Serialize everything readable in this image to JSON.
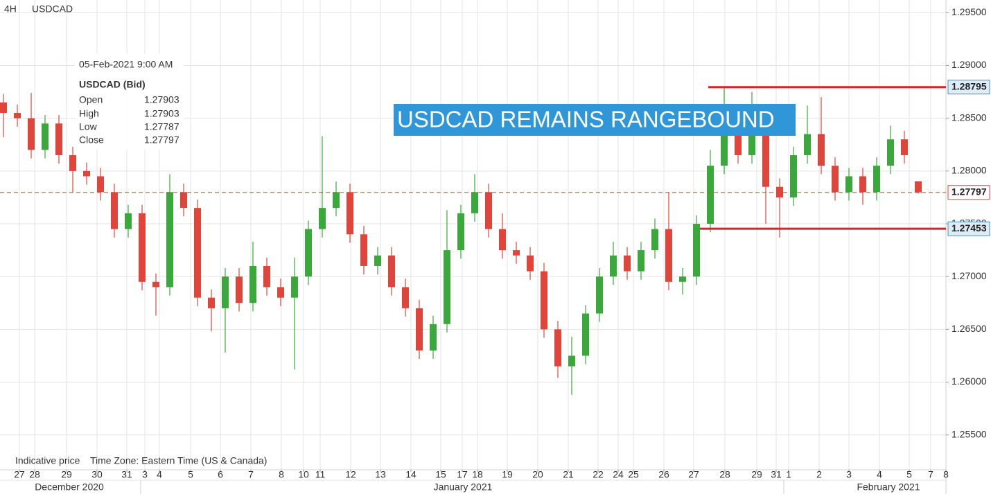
{
  "header": {
    "timeframe": "4H",
    "symbol": "USDCAD"
  },
  "tooltip": {
    "date": "05-Feb-2021 9:00 AM",
    "title": "USDCAD (Bid)",
    "labels": [
      "Open",
      "High",
      "Low",
      "Close"
    ]
  },
  "footer": {
    "note": "Indicative price",
    "timezone": "Time Zone: Eastern Time (US & Canada)"
  },
  "chart_data": {
    "type": "candlestick",
    "annotation": "USDCAD REMAINS RANGEBOUND",
    "up_color": "#3aa83a",
    "down_color": "#e0453c",
    "grid": true,
    "x": [
      0,
      1,
      2,
      3,
      4,
      5,
      6,
      7,
      8,
      9,
      10,
      11,
      12,
      13,
      14,
      15,
      16,
      17,
      18,
      19,
      20,
      21,
      22,
      23,
      24,
      25,
      26,
      27,
      28,
      29,
      30,
      31,
      32,
      33,
      34,
      35,
      36,
      37,
      38,
      39,
      40,
      41,
      42,
      43,
      44,
      45,
      46,
      47,
      48,
      49,
      50,
      51,
      52,
      53,
      54,
      55,
      56,
      57,
      58,
      59,
      60,
      61,
      62,
      63,
      64,
      65,
      66
    ],
    "open": [
      1.2865,
      1.2855,
      1.285,
      1.282,
      1.2845,
      1.2815,
      1.28,
      1.2795,
      1.278,
      1.2745,
      1.276,
      1.2695,
      1.269,
      1.278,
      1.2765,
      1.268,
      1.267,
      1.27,
      1.2675,
      1.271,
      1.269,
      1.268,
      1.27,
      1.2745,
      1.2765,
      1.278,
      1.274,
      1.271,
      1.272,
      1.269,
      1.267,
      1.263,
      1.2655,
      1.2725,
      1.276,
      1.278,
      1.2745,
      1.2725,
      1.272,
      1.2705,
      1.265,
      1.2615,
      1.2625,
      1.2665,
      1.27,
      1.272,
      1.2705,
      1.2725,
      1.2745,
      1.2695,
      1.27,
      1.275,
      1.2805,
      1.2835,
      1.2815,
      1.284,
      1.2785,
      1.2775,
      1.2815,
      1.2835,
      1.2805,
      1.278,
      1.2795,
      1.278,
      1.2805,
      1.283,
      1.27903
    ],
    "high": [
      1.2873,
      1.2863,
      1.2874,
      1.2853,
      1.2853,
      1.2823,
      1.2808,
      1.2803,
      1.2788,
      1.2768,
      1.2768,
      1.2703,
      1.2797,
      1.2788,
      1.2773,
      1.2688,
      1.2708,
      1.2708,
      1.2733,
      1.2718,
      1.2698,
      1.2718,
      1.2753,
      1.2833,
      1.279,
      1.2788,
      1.2748,
      1.2728,
      1.2728,
      1.2698,
      1.2678,
      1.2663,
      1.2763,
      1.2768,
      1.2797,
      1.2788,
      1.276,
      1.2733,
      1.2728,
      1.2713,
      1.2658,
      1.2643,
      1.2673,
      1.2708,
      1.2733,
      1.2728,
      1.2733,
      1.2755,
      1.278,
      1.2708,
      1.2758,
      1.282,
      1.2879,
      1.2843,
      1.2875,
      1.2848,
      1.2793,
      1.2823,
      1.2862,
      1.287,
      1.2813,
      1.2803,
      1.2803,
      1.2813,
      1.2843,
      1.2838,
      1.27903
    ],
    "low": [
      1.2832,
      1.2842,
      1.2812,
      1.2812,
      1.2807,
      1.278,
      1.2787,
      1.2772,
      1.2737,
      1.2737,
      1.2687,
      1.2663,
      1.2682,
      1.2757,
      1.2672,
      1.2648,
      1.2628,
      1.2667,
      1.2667,
      1.2682,
      1.2672,
      1.2612,
      1.2692,
      1.2737,
      1.2757,
      1.2732,
      1.2702,
      1.2702,
      1.2682,
      1.2662,
      1.2622,
      1.2622,
      1.2647,
      1.2717,
      1.2752,
      1.2737,
      1.2717,
      1.2712,
      1.2697,
      1.2642,
      1.2604,
      1.2588,
      1.2617,
      1.2657,
      1.2692,
      1.2697,
      1.2697,
      1.2717,
      1.2687,
      1.2683,
      1.2692,
      1.2742,
      1.2797,
      1.2807,
      1.2807,
      1.275,
      1.2737,
      1.2767,
      1.2807,
      1.2797,
      1.2772,
      1.2772,
      1.2768,
      1.2772,
      1.2797,
      1.2807,
      1.27787
    ],
    "close": [
      1.2855,
      1.285,
      1.282,
      1.2845,
      1.2815,
      1.28,
      1.2795,
      1.278,
      1.2745,
      1.276,
      1.2695,
      1.269,
      1.278,
      1.2765,
      1.268,
      1.267,
      1.27,
      1.2675,
      1.271,
      1.269,
      1.268,
      1.27,
      1.2745,
      1.2765,
      1.278,
      1.274,
      1.271,
      1.272,
      1.269,
      1.267,
      1.263,
      1.2655,
      1.2725,
      1.276,
      1.278,
      1.2745,
      1.2725,
      1.272,
      1.2705,
      1.265,
      1.2615,
      1.2625,
      1.2665,
      1.27,
      1.272,
      1.2705,
      1.2725,
      1.2745,
      1.2695,
      1.27,
      1.275,
      1.2805,
      1.2835,
      1.2815,
      1.284,
      1.2785,
      1.2775,
      1.2815,
      1.2835,
      1.2805,
      1.278,
      1.2795,
      1.278,
      1.2805,
      1.283,
      1.2815,
      1.27797
    ],
    "last_price_color": "#e0453c",
    "hlines": [
      {
        "value": 1.28795,
        "color": "#e31e24",
        "from": 50.85
      },
      {
        "value": 1.27453,
        "color": "#e31e24",
        "from": 50.25
      }
    ],
    "xlim": [
      -0.25,
      68
    ],
    "ylim": [
      1.2517,
      1.2962
    ],
    "yticks": [
      {
        "value": 1.295,
        "label": "1.29500"
      },
      {
        "value": 1.29,
        "label": "1.29000"
      },
      {
        "value": 1.285,
        "label": "1.28500"
      },
      {
        "value": 1.28,
        "label": "1.28000"
      },
      {
        "value": 1.275,
        "label": "1.27500"
      },
      {
        "value": 1.27,
        "label": "1.27000"
      },
      {
        "value": 1.265,
        "label": "1.26500"
      },
      {
        "value": 1.26,
        "label": "1.26000"
      },
      {
        "value": 1.255,
        "label": "1.25500"
      }
    ],
    "xticks": [
      {
        "value": 1.15,
        "label": "27"
      },
      {
        "value": 2.25,
        "label": "28"
      },
      {
        "value": 4.55,
        "label": "29"
      },
      {
        "value": 6.75,
        "label": "30"
      },
      {
        "value": 8.9,
        "label": "31"
      },
      {
        "value": 10.2,
        "label": "3"
      },
      {
        "value": 11.25,
        "label": "4"
      },
      {
        "value": 13.5,
        "label": "5"
      },
      {
        "value": 15.65,
        "label": "6"
      },
      {
        "value": 17.85,
        "label": "7"
      },
      {
        "value": 20.05,
        "label": "8"
      },
      {
        "value": 21.65,
        "label": "10"
      },
      {
        "value": 22.85,
        "label": "11"
      },
      {
        "value": 25.05,
        "label": "12"
      },
      {
        "value": 27.2,
        "label": "13"
      },
      {
        "value": 29.4,
        "label": "14"
      },
      {
        "value": 31.55,
        "label": "15"
      },
      {
        "value": 33.1,
        "label": "17"
      },
      {
        "value": 34.2,
        "label": "18"
      },
      {
        "value": 36.35,
        "label": "19"
      },
      {
        "value": 38.55,
        "label": "20"
      },
      {
        "value": 40.75,
        "label": "21"
      },
      {
        "value": 42.9,
        "label": "22"
      },
      {
        "value": 44.35,
        "label": "24"
      },
      {
        "value": 45.45,
        "label": "25"
      },
      {
        "value": 47.65,
        "label": "26"
      },
      {
        "value": 49.8,
        "label": "27"
      },
      {
        "value": 52.05,
        "label": "28"
      },
      {
        "value": 54.35,
        "label": "29"
      },
      {
        "value": 55.75,
        "label": "31"
      },
      {
        "value": 56.65,
        "label": "1"
      },
      {
        "value": 58.85,
        "label": "2"
      },
      {
        "value": 61,
        "label": "3"
      },
      {
        "value": 63.2,
        "label": "4"
      },
      {
        "value": 65.35,
        "label": "5"
      },
      {
        "value": 66.9,
        "label": "7"
      },
      {
        "value": 68,
        "label": "8"
      }
    ],
    "month_labels": [
      {
        "value": 4.75,
        "label": "December 2020"
      },
      {
        "value": 33.15,
        "label": "January 2021"
      },
      {
        "value": 63.85,
        "label": "February 2021"
      }
    ]
  }
}
